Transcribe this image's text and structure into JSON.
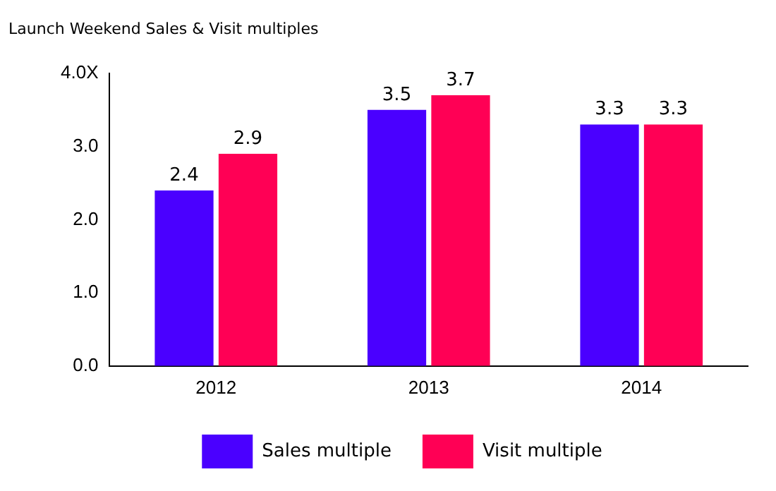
{
  "chart_data": {
    "type": "bar",
    "title": "Launch Weekend Sales & Visit multiples",
    "categories": [
      "2012",
      "2013",
      "2014"
    ],
    "series": [
      {
        "name": "Sales multiple",
        "color": "#4a00ff",
        "values": [
          2.4,
          3.5,
          3.3
        ]
      },
      {
        "name": "Visit multiple",
        "color": "#ff0055",
        "values": [
          2.9,
          3.7,
          3.3
        ]
      }
    ],
    "ylim": [
      0,
      4
    ],
    "yticks": [
      {
        "value": 0,
        "label": "0.0"
      },
      {
        "value": 1,
        "label": "1.0"
      },
      {
        "value": 2,
        "label": "2.0"
      },
      {
        "value": 3,
        "label": "3.0"
      },
      {
        "value": 4,
        "label": "4.0X"
      }
    ],
    "data_labels": true,
    "grid": false,
    "legend": "bottom"
  }
}
